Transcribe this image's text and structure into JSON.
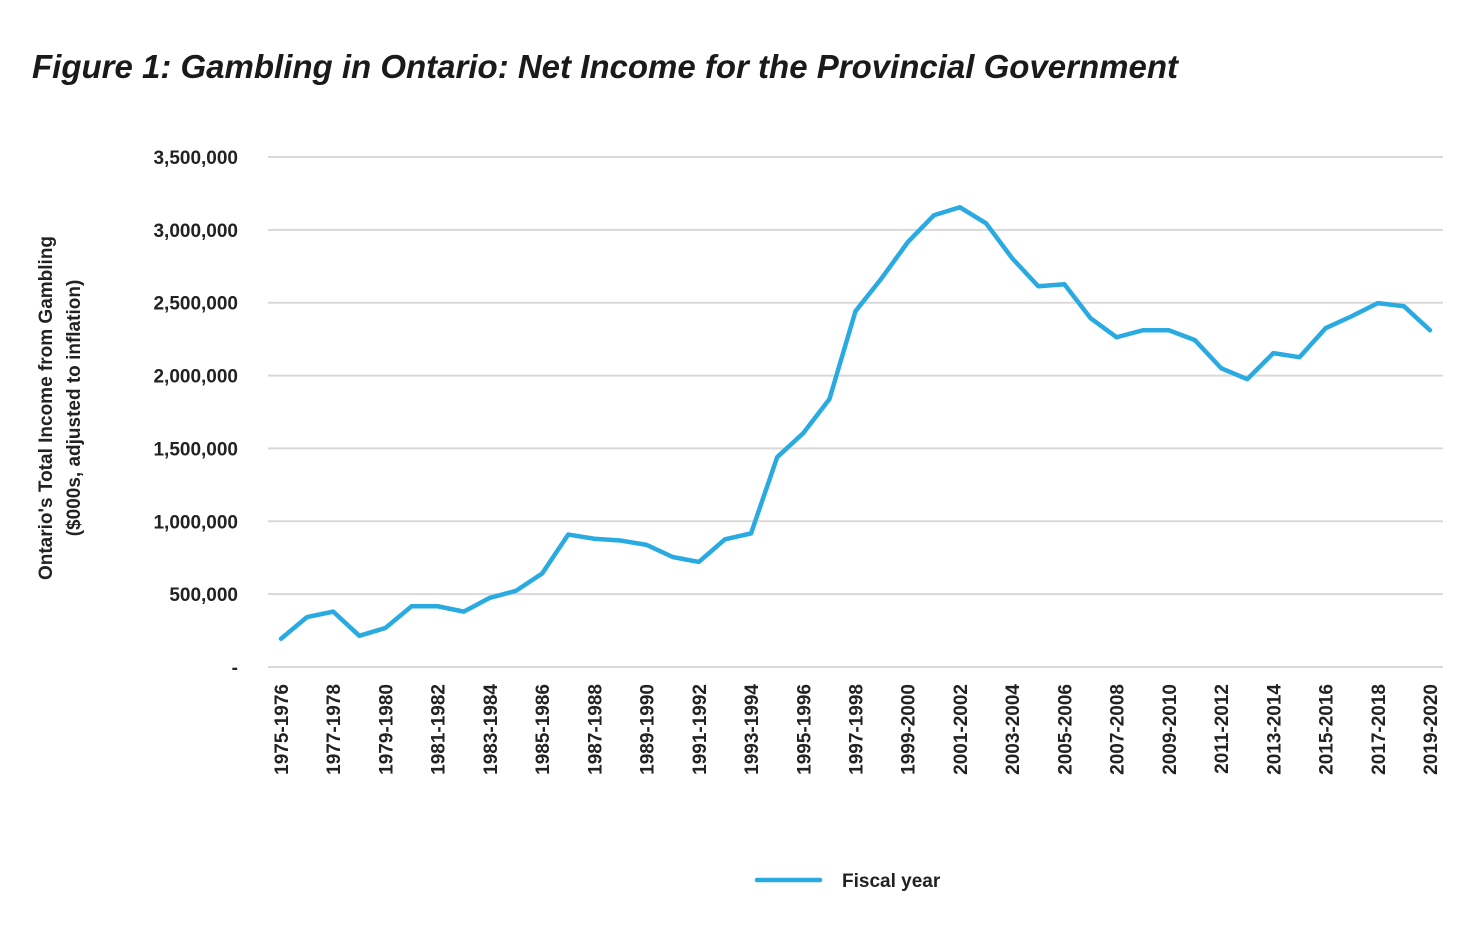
{
  "title": "Figure 1: Gambling in Ontario: Net Income for the Provincial Government",
  "chart_data": {
    "type": "line",
    "title": "Figure 1: Gambling in Ontario: Net Income for the Provincial Government",
    "ylabel_line1": "Ontario's Total Income from Gambling",
    "ylabel_line2": "($000s, adjusted to inflation)",
    "xlabel": "",
    "ylim": [
      0,
      3500000
    ],
    "yticks": [
      0,
      500000,
      1000000,
      1500000,
      2000000,
      2500000,
      3000000,
      3500000
    ],
    "ytick_labels": [
      "-",
      "500,000",
      "1,000,000",
      "1,500,000",
      "2,000,000",
      "2,500,000",
      "3,000,000",
      "3,500,000"
    ],
    "grid": true,
    "legend_placement": "bottom",
    "color": "#29abe2",
    "x": [
      "1975-1976",
      "1976-1977",
      "1977-1978",
      "1978-1979",
      "1979-1980",
      "1980-1981",
      "1981-1982",
      "1982-1983",
      "1983-1984",
      "1984-1985",
      "1985-1986",
      "1986-1987",
      "1987-1988",
      "1988-1989",
      "1989-1990",
      "1990-1991",
      "1991-1992",
      "1992-1993",
      "1993-1994",
      "1994-1995",
      "1995-1996",
      "1996-1997",
      "1997-1998",
      "1998-1999",
      "1999-2000",
      "2000-2001",
      "2001-2002",
      "2002-2003",
      "2003-2004",
      "2004-2005",
      "2005-2006",
      "2006-2007",
      "2007-2008",
      "2008-2009",
      "2009-2010",
      "2010-2011",
      "2011-2012",
      "2012-2013",
      "2013-2014",
      "2014-2015",
      "2015-2016",
      "2016-2017",
      "2017-2018",
      "2018-2019",
      "2019-2020"
    ],
    "series": [
      {
        "name": "Fiscal year",
        "values": [
          194000,
          343000,
          380000,
          214000,
          268000,
          417000,
          417000,
          380000,
          475000,
          523000,
          642000,
          909000,
          880000,
          868000,
          838000,
          755000,
          721000,
          876000,
          917000,
          1440000,
          1605000,
          1838000,
          2442000,
          2668000,
          2915000,
          3100000,
          3155000,
          3045000,
          2805000,
          2613000,
          2627000,
          2394000,
          2263000,
          2311000,
          2311000,
          2243000,
          2051000,
          1975000,
          2154000,
          2126000,
          2325000,
          2407000,
          2497000,
          2476000,
          2311000
        ]
      }
    ]
  }
}
